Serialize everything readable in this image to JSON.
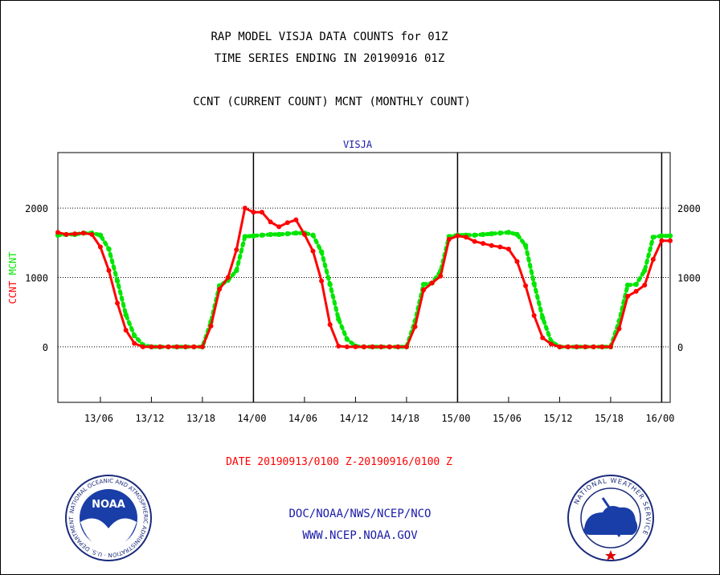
{
  "header": {
    "title1": "RAP MODEL VISJA DATA COUNTS for 01Z",
    "title2": "TIME SERIES ENDING IN 20190916 01Z",
    "title3": "CCNT (CURRENT COUNT) MCNT (MONTHLY COUNT)"
  },
  "chart_data": {
    "type": "line",
    "title": "VISJA",
    "ylabel_left": [
      "CCNT",
      "MCNT"
    ],
    "xlabel": "DATE 20190913/0100 Z-20190916/0100 Z",
    "ylim": [
      -800,
      2800
    ],
    "yticks": [
      0,
      1000,
      2000
    ],
    "xlim_hours": [
      1,
      73
    ],
    "x_tick_labels": [
      {
        "hour": 6,
        "label": "13/06"
      },
      {
        "hour": 12,
        "label": "13/12"
      },
      {
        "hour": 18,
        "label": "13/18"
      },
      {
        "hour": 24,
        "label": "14/00"
      },
      {
        "hour": 30,
        "label": "14/06"
      },
      {
        "hour": 36,
        "label": "14/12"
      },
      {
        "hour": 42,
        "label": "14/18"
      },
      {
        "hour": 48,
        "label": "15/00"
      },
      {
        "hour": 54,
        "label": "15/06"
      },
      {
        "hour": 60,
        "label": "15/12"
      },
      {
        "hour": 66,
        "label": "15/18"
      },
      {
        "hour": 72,
        "label": "16/00"
      }
    ],
    "day_lines_hours": [
      24,
      48,
      72
    ],
    "grid": true,
    "series": [
      {
        "name": "CCNT",
        "color": "#ff0000",
        "style": "solid",
        "x": [
          1,
          2,
          3,
          4,
          5,
          6,
          7,
          8,
          9,
          10,
          11,
          12,
          13,
          14,
          15,
          16,
          17,
          18,
          19,
          20,
          21,
          22,
          23,
          24,
          25,
          26,
          27,
          28,
          29,
          30,
          31,
          32,
          33,
          34,
          35,
          36,
          37,
          38,
          39,
          40,
          41,
          42,
          43,
          44,
          45,
          46,
          47,
          48,
          49,
          50,
          51,
          52,
          53,
          54,
          55,
          56,
          57,
          58,
          59,
          60,
          61,
          62,
          63,
          64,
          65,
          66,
          67,
          68,
          69,
          70,
          71,
          72,
          73
        ],
        "values": [
          1650,
          1620,
          1630,
          1640,
          1620,
          1440,
          1100,
          630,
          240,
          50,
          0,
          0,
          0,
          0,
          0,
          0,
          0,
          0,
          300,
          830,
          1000,
          1400,
          2000,
          1940,
          1940,
          1800,
          1730,
          1790,
          1830,
          1620,
          1380,
          950,
          320,
          10,
          0,
          0,
          0,
          0,
          0,
          0,
          0,
          0,
          290,
          820,
          920,
          1020,
          1550,
          1600,
          1580,
          1520,
          1490,
          1460,
          1440,
          1410,
          1230,
          880,
          450,
          130,
          40,
          0,
          0,
          0,
          0,
          0,
          0,
          0,
          260,
          730,
          800,
          890,
          1260,
          1530,
          1530
        ]
      },
      {
        "name": "MCNT",
        "color": "#00e600",
        "style": "dotted",
        "x": [
          1,
          2,
          3,
          4,
          5,
          6,
          7,
          8,
          9,
          10,
          11,
          12,
          13,
          14,
          15,
          16,
          17,
          18,
          19,
          20,
          21,
          22,
          23,
          24,
          25,
          26,
          27,
          28,
          29,
          30,
          31,
          32,
          33,
          34,
          35,
          36,
          37,
          38,
          39,
          40,
          41,
          42,
          43,
          44,
          45,
          46,
          47,
          48,
          49,
          50,
          51,
          52,
          53,
          54,
          55,
          56,
          57,
          58,
          59,
          60,
          61,
          62,
          63,
          64,
          65,
          66,
          67,
          68,
          69,
          70,
          71,
          72,
          73
        ],
        "values": [
          1610,
          1620,
          1620,
          1640,
          1640,
          1610,
          1410,
          950,
          460,
          160,
          30,
          0,
          0,
          0,
          0,
          0,
          0,
          0,
          360,
          880,
          960,
          1100,
          1590,
          1600,
          1610,
          1620,
          1620,
          1630,
          1640,
          1640,
          1610,
          1370,
          900,
          400,
          110,
          10,
          0,
          0,
          0,
          0,
          0,
          0,
          370,
          900,
          920,
          1090,
          1590,
          1610,
          1610,
          1610,
          1620,
          1630,
          1640,
          1650,
          1620,
          1460,
          910,
          420,
          80,
          0,
          0,
          0,
          0,
          0,
          0,
          0,
          370,
          890,
          900,
          1100,
          1580,
          1600,
          1600
        ]
      }
    ]
  },
  "footer": {
    "line1": "DOC/NOAA/NWS/NCEP/NCO",
    "line2": "WWW.NCEP.NOAA.GOV",
    "noaa_logo_text": "NOAA",
    "noaa_ring_text": "NATIONAL OCEANIC AND ATMOSPHERIC ADMINISTRATION · U.S. DEPARTMENT OF COMMERCE",
    "nws_ring_text": "NATIONAL WEATHER SERVICE"
  }
}
